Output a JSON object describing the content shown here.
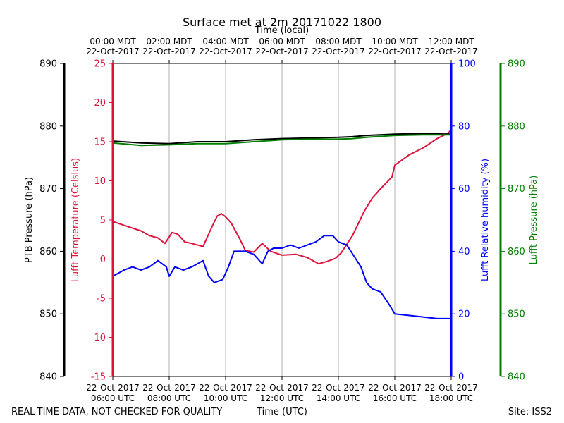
{
  "chart_data": {
    "type": "line",
    "title": "Surface met at 2m 20171022 1800",
    "top_axis_title": "Time (local)",
    "xlabel": "Time (UTC)",
    "footer_left": "REAL-TIME DATA, NOT CHECKED FOR QUALITY",
    "footer_right": "Site: ISS2",
    "grid": "vertical",
    "xlim_hours_utc": [
      6,
      18
    ],
    "x_ticks": [
      {
        "bottom_date": "22-Oct-2017",
        "bottom_time": "06:00 UTC",
        "top_time": "00:00 MDT",
        "top_date": "22-Oct-2017"
      },
      {
        "bottom_date": "22-Oct-2017",
        "bottom_time": "08:00 UTC",
        "top_time": "02:00 MDT",
        "top_date": "22-Oct-2017"
      },
      {
        "bottom_date": "22-Oct-2017",
        "bottom_time": "10:00 UTC",
        "top_time": "04:00 MDT",
        "top_date": "22-Oct-2017"
      },
      {
        "bottom_date": "22-Oct-2017",
        "bottom_time": "12:00 UTC",
        "top_time": "06:00 MDT",
        "top_date": "22-Oct-2017"
      },
      {
        "bottom_date": "22-Oct-2017",
        "bottom_time": "14:00 UTC",
        "top_time": "08:00 MDT",
        "top_date": "22-Oct-2017"
      },
      {
        "bottom_date": "22-Oct-2017",
        "bottom_time": "16:00 UTC",
        "top_time": "10:00 MDT",
        "top_date": "22-Oct-2017"
      },
      {
        "bottom_date": "22-Oct-2017",
        "bottom_time": "18:00 UTC",
        "top_time": "12:00 MDT",
        "top_date": "22-Oct-2017"
      }
    ],
    "axes": {
      "ptb": {
        "label": "PTB Pressure (hPa)",
        "ylim": [
          840,
          890
        ],
        "ticks": [
          840,
          850,
          860,
          870,
          880,
          890
        ],
        "color": "#000000"
      },
      "temp": {
        "label": "Lufft Temperature (Celsius)",
        "ylim": [
          -15,
          25
        ],
        "ticks": [
          -15,
          -10,
          -5,
          0,
          5,
          10,
          15,
          20,
          25
        ],
        "color": "#dc143c"
      },
      "rh": {
        "label": "Lufft Relative humidity (%)",
        "ylim": [
          0,
          100
        ],
        "ticks": [
          0,
          20,
          40,
          60,
          80,
          100
        ],
        "color": "#0000ff"
      },
      "lufftp": {
        "label": "Lufft Pressure (hPa)",
        "ylim": [
          840,
          890
        ],
        "ticks": [
          840,
          850,
          860,
          870,
          880,
          890
        ],
        "color": "#008000"
      }
    },
    "series": [
      {
        "axis": "temp",
        "color": "#dc143c",
        "x": [
          6.0,
          6.5,
          7.0,
          7.3,
          7.6,
          7.85,
          8.1,
          8.3,
          8.55,
          8.8,
          9.2,
          9.5,
          9.7,
          9.85,
          10.0,
          10.2,
          10.5,
          10.7,
          11.0,
          11.3,
          11.6,
          12.0,
          12.5,
          12.9,
          13.3,
          13.6,
          13.9,
          14.1,
          14.5,
          14.9,
          15.2,
          15.5,
          15.9,
          16.0,
          16.5,
          17.0,
          17.5,
          17.9,
          18.0
        ],
        "y": [
          4.8,
          4.2,
          3.6,
          3.0,
          2.7,
          2.0,
          3.4,
          3.2,
          2.2,
          2.0,
          1.6,
          4.0,
          5.5,
          5.8,
          5.4,
          4.6,
          2.6,
          1.1,
          0.9,
          2.0,
          1.0,
          0.5,
          0.6,
          0.2,
          -0.6,
          -0.3,
          0.1,
          0.8,
          3.0,
          6.0,
          7.8,
          9.0,
          10.5,
          12.0,
          13.3,
          14.2,
          15.4,
          16.1,
          16.6
        ]
      },
      {
        "axis": "rh",
        "color": "#0000ff",
        "x": [
          6.0,
          6.4,
          6.7,
          7.0,
          7.3,
          7.6,
          7.9,
          8.0,
          8.2,
          8.5,
          8.8,
          9.2,
          9.4,
          9.6,
          9.9,
          10.1,
          10.3,
          10.7,
          11.0,
          11.3,
          11.5,
          11.7,
          12.0,
          12.3,
          12.6,
          12.9,
          13.2,
          13.5,
          13.8,
          14.0,
          14.3,
          14.8,
          15.0,
          15.2,
          15.5,
          15.8,
          16.0,
          16.5,
          17.0,
          17.5,
          18.0
        ],
        "y": [
          32,
          34,
          35,
          34,
          35,
          37,
          35,
          32,
          35,
          34,
          35,
          37,
          32,
          30,
          31,
          35,
          40,
          40,
          39,
          36,
          40,
          41,
          41,
          42,
          41,
          42,
          43,
          45,
          45,
          43,
          42,
          35,
          30,
          28,
          27,
          23,
          20,
          19.5,
          19,
          18.5,
          18.5
        ]
      },
      {
        "axis": "ptb",
        "color": "#000000",
        "x": [
          6.0,
          7.0,
          8.0,
          9.0,
          10.0,
          11.0,
          12.0,
          13.0,
          14.0,
          14.5,
          15.0,
          16.0,
          17.0,
          18.0
        ],
        "y": [
          877.6,
          877.3,
          877.2,
          877.5,
          877.5,
          877.8,
          878.0,
          878.1,
          878.2,
          878.3,
          878.5,
          878.7,
          878.8,
          878.7
        ]
      },
      {
        "axis": "lufftp",
        "color": "#008000",
        "x": [
          6.0,
          7.0,
          8.0,
          9.0,
          10.0,
          11.0,
          12.0,
          13.0,
          14.0,
          14.5,
          15.0,
          16.0,
          17.0,
          18.0
        ],
        "y": [
          877.3,
          876.9,
          877.0,
          877.2,
          877.2,
          877.5,
          877.8,
          877.9,
          877.9,
          878.0,
          878.2,
          878.5,
          878.6,
          878.6
        ]
      }
    ]
  }
}
